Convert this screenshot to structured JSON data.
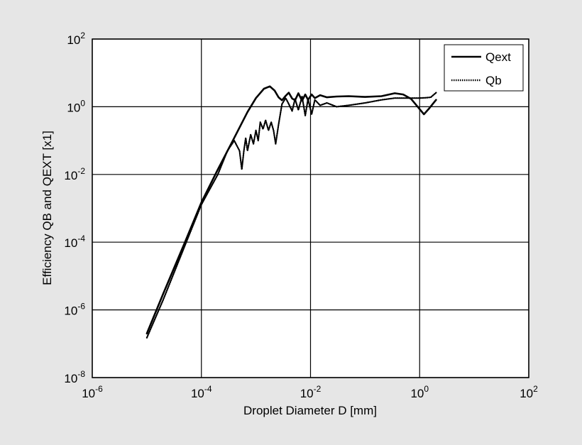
{
  "chart_data": {
    "type": "line",
    "title": "",
    "xlabel": "Droplet Diameter D [mm]",
    "ylabel": "Efficiency QB and QEXT  [x1]",
    "x_scale": "log",
    "y_scale": "log",
    "xlim": [
      1e-06,
      100
    ],
    "ylim": [
      1e-08,
      100
    ],
    "grid": true,
    "legend_position": "top-right",
    "x_ticks": [
      {
        "base": "10",
        "exp": "-6",
        "value": 1e-06
      },
      {
        "base": "10",
        "exp": "-4",
        "value": 0.0001
      },
      {
        "base": "10",
        "exp": "-2",
        "value": 0.01
      },
      {
        "base": "10",
        "exp": "0",
        "value": 1
      },
      {
        "base": "10",
        "exp": "2",
        "value": 100
      }
    ],
    "y_ticks": [
      {
        "base": "10",
        "exp": "2",
        "value": 100
      },
      {
        "base": "10",
        "exp": "0",
        "value": 1
      },
      {
        "base": "10",
        "exp": "-2",
        "value": 0.01
      },
      {
        "base": "10",
        "exp": "-4",
        "value": 0.0001
      },
      {
        "base": "10",
        "exp": "-6",
        "value": 1e-06
      },
      {
        "base": "10",
        "exp": "-8",
        "value": 1e-08
      }
    ],
    "series": [
      {
        "name": "Qext",
        "style": "solid",
        "color": "#000000",
        "x": [
          1e-05,
          2e-05,
          5e-05,
          0.0001,
          0.0002,
          0.0004,
          0.0007,
          0.001,
          0.0014,
          0.0018,
          0.0022,
          0.0026,
          0.003,
          0.0035,
          0.004,
          0.0046,
          0.0052,
          0.006,
          0.007,
          0.008,
          0.009,
          0.0105,
          0.012,
          0.015,
          0.02,
          0.03,
          0.05,
          0.1,
          0.2,
          0.35,
          0.5,
          0.7,
          1.0,
          1.2,
          1.5,
          2.0
        ],
        "y": [
          2e-07,
          3e-06,
          0.0001,
          0.0015,
          0.014,
          0.12,
          0.7,
          1.8,
          3.4,
          4.0,
          3.0,
          1.9,
          1.55,
          2.1,
          2.6,
          1.75,
          1.55,
          2.5,
          1.5,
          2.3,
          1.6,
          2.3,
          1.8,
          2.2,
          1.9,
          2.0,
          2.05,
          1.95,
          2.05,
          2.5,
          2.3,
          1.7,
          0.85,
          0.6,
          0.9,
          1.6
        ]
      },
      {
        "name": "Qb",
        "style": "dotted",
        "color": "#000000",
        "x": [
          1e-05,
          2e-05,
          5e-05,
          0.0001,
          0.0002,
          0.0003,
          0.0004,
          0.0005,
          0.00055,
          0.0006,
          0.00065,
          0.0007,
          0.0008,
          0.0009,
          0.001,
          0.0011,
          0.0012,
          0.00135,
          0.0015,
          0.0017,
          0.0019,
          0.0021,
          0.0023,
          0.0026,
          0.003,
          0.0035,
          0.004,
          0.0046,
          0.0052,
          0.006,
          0.007,
          0.008,
          0.009,
          0.0105,
          0.012,
          0.015,
          0.02,
          0.03,
          0.05,
          0.1,
          0.2,
          0.35,
          0.5,
          0.7,
          1.0,
          1.3,
          1.6,
          2.0
        ],
        "y": [
          1.5e-07,
          2e-06,
          8e-05,
          0.0013,
          0.01,
          0.05,
          0.1,
          0.05,
          0.014,
          0.05,
          0.12,
          0.05,
          0.15,
          0.08,
          0.2,
          0.1,
          0.35,
          0.22,
          0.4,
          0.2,
          0.35,
          0.2,
          0.08,
          0.3,
          1.2,
          1.8,
          1.2,
          0.75,
          1.7,
          0.8,
          2.0,
          0.55,
          1.7,
          0.6,
          1.6,
          1.1,
          1.3,
          1.0,
          1.1,
          1.3,
          1.6,
          1.8,
          1.8,
          1.8,
          1.8,
          1.85,
          1.9,
          2.6
        ]
      }
    ]
  }
}
